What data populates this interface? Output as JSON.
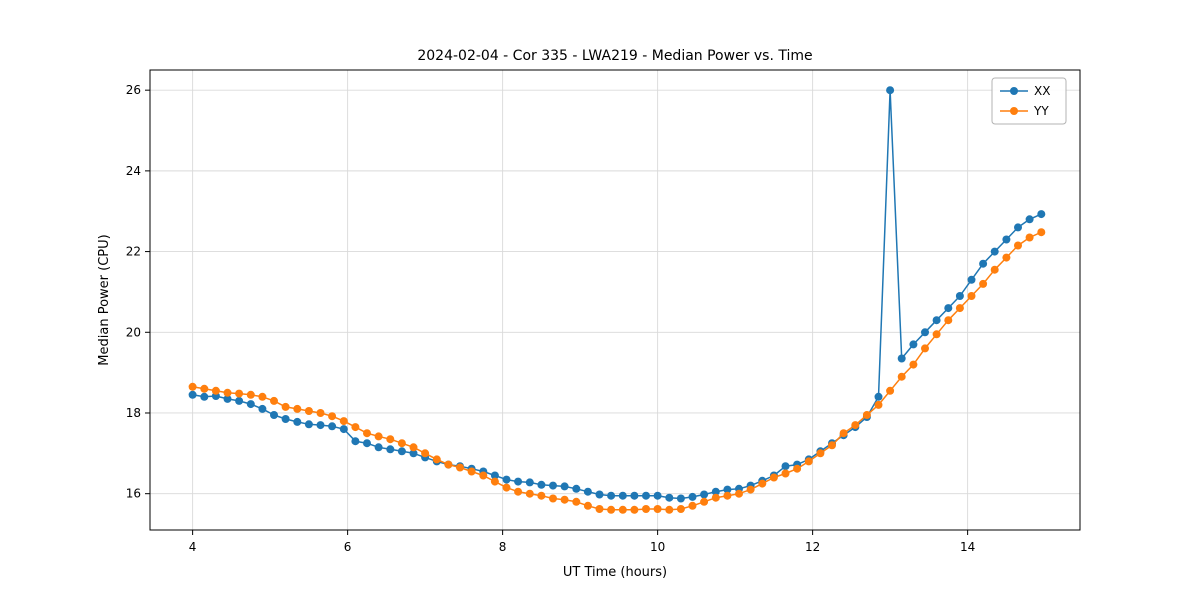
{
  "page": {
    "background": "#ffffff"
  },
  "chart_data": {
    "type": "line",
    "title": "2024-02-04 - Cor 335 - LWA219 - Median Power vs. Time",
    "xlabel": "UT Time (hours)",
    "ylabel": "Median Power (CPU)",
    "xlim": [
      3.45,
      15.45
    ],
    "ylim": [
      15.1,
      26.5
    ],
    "xticks": [
      4,
      6,
      8,
      10,
      12,
      14
    ],
    "yticks": [
      16,
      18,
      20,
      22,
      24,
      26
    ],
    "grid": true,
    "grid_color": "#d9d9d9",
    "legend": {
      "position": "upper right",
      "entries": [
        "XX",
        "YY"
      ]
    },
    "x": [
      4.0,
      4.15,
      4.3,
      4.45,
      4.6,
      4.75,
      4.9,
      5.05,
      5.2,
      5.35,
      5.5,
      5.65,
      5.8,
      5.95,
      6.1,
      6.25,
      6.4,
      6.55,
      6.7,
      6.85,
      7.0,
      7.15,
      7.3,
      7.45,
      7.6,
      7.75,
      7.9,
      8.05,
      8.2,
      8.35,
      8.5,
      8.65,
      8.8,
      8.95,
      9.1,
      9.25,
      9.4,
      9.55,
      9.7,
      9.85,
      10.0,
      10.15,
      10.3,
      10.45,
      10.6,
      10.75,
      10.9,
      11.05,
      11.2,
      11.35,
      11.5,
      11.65,
      11.8,
      11.95,
      12.1,
      12.25,
      12.4,
      12.55,
      12.7,
      12.85,
      13.0,
      13.15,
      13.3,
      13.45,
      13.6,
      13.75,
      13.9,
      14.05,
      14.2,
      14.35,
      14.5,
      14.65,
      14.8,
      14.95
    ],
    "series": [
      {
        "name": "XX",
        "color": "#1f77b4",
        "marker": "circle",
        "values": [
          18.45,
          18.4,
          18.42,
          18.35,
          18.3,
          18.22,
          18.1,
          17.95,
          17.85,
          17.78,
          17.72,
          17.7,
          17.67,
          17.6,
          17.3,
          17.25,
          17.15,
          17.1,
          17.05,
          17.0,
          16.9,
          16.8,
          16.72,
          16.68,
          16.62,
          16.55,
          16.45,
          16.35,
          16.3,
          16.28,
          16.22,
          16.2,
          16.18,
          16.12,
          16.05,
          15.98,
          15.95,
          15.95,
          15.95,
          15.95,
          15.95,
          15.9,
          15.88,
          15.92,
          15.98,
          16.05,
          16.1,
          16.12,
          16.2,
          16.32,
          16.45,
          16.68,
          16.72,
          16.85,
          17.05,
          17.25,
          17.45,
          17.65,
          17.9,
          18.4,
          26.0,
          19.35,
          19.7,
          20.0,
          20.3,
          20.6,
          20.9,
          21.3,
          21.7,
          22.0,
          22.3,
          22.6,
          22.8,
          22.93
        ]
      },
      {
        "name": "YY",
        "color": "#ff7f0e",
        "marker": "circle",
        "values": [
          18.65,
          18.6,
          18.55,
          18.5,
          18.48,
          18.45,
          18.4,
          18.3,
          18.15,
          18.1,
          18.05,
          18.0,
          17.92,
          17.8,
          17.65,
          17.5,
          17.42,
          17.35,
          17.25,
          17.15,
          17.0,
          16.85,
          16.72,
          16.65,
          16.55,
          16.45,
          16.3,
          16.15,
          16.05,
          16.0,
          15.95,
          15.88,
          15.85,
          15.8,
          15.7,
          15.62,
          15.6,
          15.6,
          15.6,
          15.62,
          15.62,
          15.6,
          15.62,
          15.7,
          15.8,
          15.9,
          15.95,
          16.0,
          16.1,
          16.25,
          16.4,
          16.5,
          16.62,
          16.8,
          17.0,
          17.2,
          17.5,
          17.7,
          17.95,
          18.2,
          18.55,
          18.9,
          19.2,
          19.6,
          19.95,
          20.3,
          20.6,
          20.9,
          21.2,
          21.55,
          21.85,
          22.15,
          22.35,
          22.48
        ]
      }
    ]
  }
}
